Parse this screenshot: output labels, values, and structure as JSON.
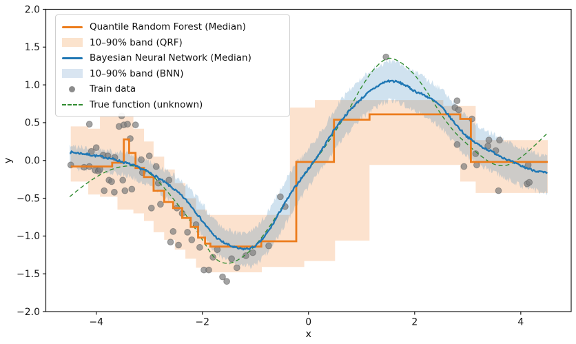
{
  "figure": {
    "xlabel": "x",
    "ylabel": "y",
    "xlim": [
      -4.95,
      4.95
    ],
    "ylim": [
      -2.0,
      2.0
    ],
    "x_ticks": [
      -4,
      -2,
      0,
      2,
      4
    ],
    "x_tick_labels": [
      "−4",
      "−2",
      "0",
      "2",
      "4"
    ],
    "y_ticks": [
      -2.0,
      -1.5,
      -1.0,
      -0.5,
      0.0,
      0.5,
      1.0,
      1.5,
      2.0
    ],
    "y_tick_labels": [
      "−2.0",
      "−1.5",
      "−1.0",
      "−0.5",
      "0.0",
      "0.5",
      "1.0",
      "1.5",
      "2.0"
    ],
    "background": "#ffffff",
    "frame_color": "#1a1a1a"
  },
  "legend": {
    "items": [
      {
        "label": "Quantile Random Forest (Median)",
        "swatch": "line",
        "color": "#ec7c1c"
      },
      {
        "label": "10–90% band (QRF)",
        "swatch": "patch",
        "color": "#fbe3cd"
      },
      {
        "label": "Bayesian Neural Network (Median)",
        "swatch": "line",
        "color": "#1f77b4"
      },
      {
        "label": "10–90% band (BNN)",
        "swatch": "patch",
        "color": "#d9e5f1"
      },
      {
        "label": "Train data",
        "swatch": "dot",
        "color": "#8c8c8c"
      },
      {
        "label": "True function (unknown)",
        "swatch": "dashed",
        "color": "#2f8b2f"
      }
    ]
  },
  "chart_data": {
    "type": "line",
    "title": "",
    "xlabel": "x",
    "ylabel": "y",
    "xlim": [
      -4.95,
      4.95
    ],
    "ylim": [
      -2.0,
      2.0
    ],
    "grid": false,
    "legend_position": "upper left",
    "x": [
      -4.5,
      -4.25,
      -4.0,
      -3.75,
      -3.5,
      -3.25,
      -3.0,
      -2.75,
      -2.5,
      -2.25,
      -2.0,
      -1.75,
      -1.5,
      -1.25,
      -1.0,
      -0.75,
      -0.5,
      -0.25,
      0.0,
      0.25,
      0.5,
      0.75,
      1.0,
      1.25,
      1.5,
      1.75,
      2.0,
      2.25,
      2.5,
      2.75,
      3.0,
      3.25,
      3.5,
      3.75,
      4.0,
      4.25,
      4.5
    ],
    "series": [
      {
        "name": "Quantile Random Forest (Median)",
        "style": "step",
        "color": "#ec7c1c",
        "steps": [
          [
            -4.48,
            -3.7,
            -0.08
          ],
          [
            -3.7,
            -3.48,
            -0.03
          ],
          [
            -3.48,
            -3.38,
            0.28
          ],
          [
            -3.38,
            -3.26,
            0.1
          ],
          [
            -3.26,
            -3.1,
            -0.1
          ],
          [
            -3.1,
            -2.92,
            -0.22
          ],
          [
            -2.92,
            -2.72,
            -0.4
          ],
          [
            -2.72,
            -2.55,
            -0.55
          ],
          [
            -2.55,
            -2.38,
            -0.63
          ],
          [
            -2.38,
            -2.22,
            -0.76
          ],
          [
            -2.22,
            -2.08,
            -0.88
          ],
          [
            -2.08,
            -1.95,
            -1.02
          ],
          [
            -1.95,
            -1.85,
            -1.1
          ],
          [
            -1.85,
            -0.89,
            -1.14
          ],
          [
            -0.89,
            -0.23,
            -1.07
          ],
          [
            -0.23,
            0.48,
            -0.02
          ],
          [
            0.48,
            1.15,
            0.54
          ],
          [
            1.15,
            2.86,
            0.61
          ],
          [
            2.86,
            3.06,
            0.55
          ],
          [
            3.06,
            4.51,
            -0.02
          ]
        ]
      },
      {
        "name": "Bayesian Neural Network (Median)",
        "style": "noisy-line",
        "color": "#1f77b4",
        "y": [
          0.11,
          0.09,
          0.06,
          0.03,
          -0.02,
          -0.08,
          -0.16,
          -0.27,
          -0.4,
          -0.57,
          -0.8,
          -1.01,
          -1.12,
          -1.17,
          -1.13,
          -0.93,
          -0.63,
          -0.35,
          -0.11,
          0.14,
          0.42,
          0.64,
          0.82,
          0.96,
          1.05,
          1.02,
          0.92,
          0.84,
          0.71,
          0.5,
          0.31,
          0.19,
          0.1,
          0.01,
          -0.07,
          -0.13,
          -0.17
        ]
      },
      {
        "name": "True function (unknown)",
        "style": "dashed",
        "color": "#2f8b2f",
        "y": [
          -0.48,
          -0.34,
          -0.22,
          -0.13,
          -0.08,
          -0.08,
          -0.17,
          -0.34,
          -0.55,
          -0.78,
          -1.05,
          -1.3,
          -1.36,
          -1.28,
          -1.12,
          -0.89,
          -0.62,
          -0.35,
          -0.12,
          0.12,
          0.38,
          0.66,
          0.97,
          1.22,
          1.35,
          1.29,
          1.13,
          0.89,
          0.61,
          0.38,
          0.21,
          0.06,
          -0.05,
          -0.06,
          0.04,
          0.19,
          0.36
        ]
      }
    ],
    "bands": [
      {
        "name": "10–90% band (QRF)",
        "style": "step",
        "color": "rgba(240,125,30,0.22)",
        "segments": [
          [
            -4.48,
            -4.15,
            -0.28,
            0.45
          ],
          [
            -4.15,
            -3.93,
            -0.45,
            0.42
          ],
          [
            -3.93,
            -3.6,
            -0.48,
            0.58
          ],
          [
            -3.6,
            -3.3,
            -0.65,
            0.58
          ],
          [
            -3.3,
            -3.1,
            -0.7,
            0.42
          ],
          [
            -3.1,
            -2.92,
            -0.8,
            0.25
          ],
          [
            -2.92,
            -2.72,
            -0.95,
            0.05
          ],
          [
            -2.72,
            -2.52,
            -1.05,
            -0.12
          ],
          [
            -2.52,
            -2.32,
            -1.18,
            -0.3
          ],
          [
            -2.32,
            -2.12,
            -1.3,
            -0.5
          ],
          [
            -2.12,
            -1.92,
            -1.42,
            -0.65
          ],
          [
            -1.92,
            -0.88,
            -1.48,
            -0.72
          ],
          [
            -0.88,
            -0.35,
            -1.41,
            -0.72
          ],
          [
            -0.35,
            -0.08,
            -1.41,
            0.7
          ],
          [
            -0.08,
            0.12,
            -1.33,
            0.7
          ],
          [
            0.12,
            0.5,
            -1.33,
            0.8
          ],
          [
            0.5,
            1.15,
            -1.06,
            0.8
          ],
          [
            1.15,
            2.54,
            -0.06,
            0.8
          ],
          [
            2.54,
            2.86,
            -0.06,
            0.72
          ],
          [
            2.86,
            3.15,
            -0.28,
            0.72
          ],
          [
            3.15,
            4.51,
            -0.43,
            0.27
          ]
        ]
      },
      {
        "name": "10–90% band (BNN)",
        "style": "noisy",
        "color": "rgba(31,119,180,0.21)",
        "lower": [
          -0.1,
          -0.11,
          -0.13,
          -0.15,
          -0.19,
          -0.25,
          -0.33,
          -0.45,
          -0.58,
          -0.77,
          -1.0,
          -1.21,
          -1.34,
          -1.4,
          -1.37,
          -1.2,
          -0.92,
          -0.62,
          -0.35,
          -0.1,
          0.15,
          0.37,
          0.56,
          0.69,
          0.78,
          0.75,
          0.66,
          0.56,
          0.43,
          0.22,
          0.05,
          -0.07,
          -0.16,
          -0.25,
          -0.33,
          -0.39,
          -0.44
        ],
        "upper": [
          0.18,
          0.17,
          0.15,
          0.13,
          0.1,
          0.05,
          -0.02,
          -0.11,
          -0.22,
          -0.37,
          -0.58,
          -0.8,
          -0.92,
          -0.96,
          -0.9,
          -0.66,
          -0.35,
          -0.06,
          0.15,
          0.4,
          0.68,
          0.91,
          1.08,
          1.22,
          1.3,
          1.27,
          1.17,
          1.06,
          0.94,
          0.75,
          0.56,
          0.43,
          0.34,
          0.25,
          0.17,
          0.1,
          0.04
        ]
      }
    ],
    "scatter": {
      "name": "Train data",
      "color": "#7f7f7f",
      "points": [
        [
          -4.48,
          -0.06
        ],
        [
          -4.23,
          -0.09
        ],
        [
          -4.13,
          0.48
        ],
        [
          -4.13,
          -0.08
        ],
        [
          -4.09,
          0.12
        ],
        [
          -4.02,
          -0.13
        ],
        [
          -4.0,
          0.17
        ],
        [
          -3.96,
          -0.14
        ],
        [
          -3.93,
          -0.12
        ],
        [
          -3.87,
          0.07
        ],
        [
          -3.85,
          -0.4
        ],
        [
          -3.78,
          0.06
        ],
        [
          -3.76,
          -0.26
        ],
        [
          -3.71,
          -0.28
        ],
        [
          -3.66,
          -0.42
        ],
        [
          -3.65,
          0.04
        ],
        [
          -3.57,
          0.45
        ],
        [
          -3.52,
          0.59
        ],
        [
          -3.5,
          -0.26
        ],
        [
          -3.48,
          0.47
        ],
        [
          -3.46,
          -0.4
        ],
        [
          -3.41,
          0.48
        ],
        [
          -3.36,
          0.29
        ],
        [
          -3.33,
          -0.38
        ],
        [
          -3.26,
          0.47
        ],
        [
          -3.15,
          0.01
        ],
        [
          -3.13,
          -0.16
        ],
        [
          -3.0,
          0.06
        ],
        [
          -2.96,
          -0.63
        ],
        [
          -2.87,
          -0.08
        ],
        [
          -2.83,
          -0.3
        ],
        [
          -2.79,
          -0.58
        ],
        [
          -2.63,
          -0.26
        ],
        [
          -2.6,
          -1.08
        ],
        [
          -2.55,
          -0.94
        ],
        [
          -2.48,
          -0.63
        ],
        [
          -2.45,
          -1.12
        ],
        [
          -2.38,
          -0.7
        ],
        [
          -2.28,
          -0.95
        ],
        [
          -2.2,
          -1.05
        ],
        [
          -2.12,
          -0.85
        ],
        [
          -2.05,
          -1.15
        ],
        [
          -1.97,
          -1.45
        ],
        [
          -1.88,
          -1.45
        ],
        [
          -1.8,
          -1.28
        ],
        [
          -1.72,
          -1.18
        ],
        [
          -1.62,
          -1.54
        ],
        [
          -1.54,
          -1.6
        ],
        [
          -1.45,
          -1.3
        ],
        [
          -1.35,
          -1.42
        ],
        [
          -1.18,
          -1.26
        ],
        [
          -1.05,
          -1.22
        ],
        [
          -0.75,
          -1.13
        ],
        [
          -0.53,
          -0.48
        ],
        [
          -0.44,
          -0.61
        ],
        [
          1.46,
          1.37
        ],
        [
          2.76,
          0.7
        ],
        [
          2.8,
          0.79
        ],
        [
          2.8,
          0.21
        ],
        [
          2.83,
          0.67
        ],
        [
          2.93,
          -0.08
        ],
        [
          3.08,
          0.55
        ],
        [
          3.15,
          0.09
        ],
        [
          3.17,
          -0.06
        ],
        [
          3.38,
          0.19
        ],
        [
          3.4,
          0.27
        ],
        [
          3.53,
          0.13
        ],
        [
          3.58,
          -0.4
        ],
        [
          3.6,
          0.27
        ],
        [
          4.12,
          -0.31
        ],
        [
          4.14,
          -0.06
        ],
        [
          4.16,
          -0.29
        ]
      ]
    }
  }
}
